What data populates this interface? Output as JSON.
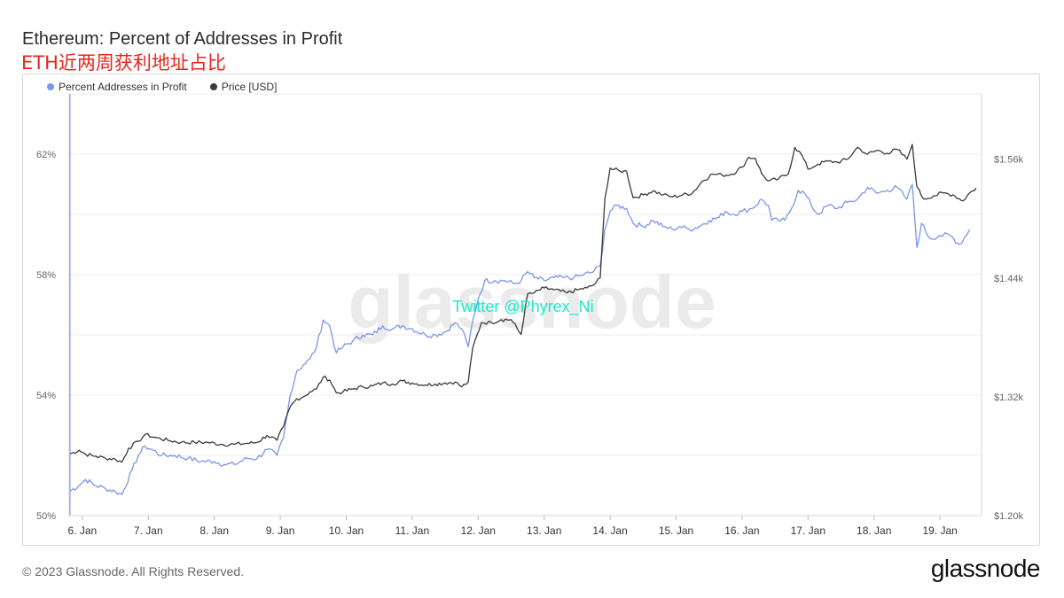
{
  "header": {
    "title": "Ethereum: Percent of Addresses in Profit",
    "subtitle": "ETH近两周获利地址占比"
  },
  "footer": {
    "copyright": "© 2023 Glassnode. All Rights Reserved.",
    "brand": "glassnode"
  },
  "watermark": {
    "logo_text": "glassnode",
    "twitter": "Twitter @Phyrex_Ni"
  },
  "colors": {
    "profit_line": "#7b96e8",
    "price_line": "#3a3a3a",
    "grid": "#ececec",
    "twitter_text": "#1de9c9"
  },
  "chart_data": {
    "type": "line",
    "x_ticks": [
      "6. Jan",
      "7. Jan",
      "8. Jan",
      "9. Jan",
      "10. Jan",
      "11. Jan",
      "12. Jan",
      "13. Jan",
      "14. Jan",
      "15. Jan",
      "16. Jan",
      "17. Jan",
      "18. Jan",
      "19. Jan"
    ],
    "x_range": [
      "5. Jan 19:00",
      "19. Jan 15:00"
    ],
    "y_left": {
      "ticks": [
        "50%",
        "54%",
        "58%",
        "62%"
      ],
      "tick_values": [
        50,
        54,
        58,
        62
      ],
      "ylim": [
        50,
        64
      ]
    },
    "y_right": {
      "ticks": [
        "$1.20k",
        "$1.32k",
        "$1.44k",
        "$1.56k"
      ],
      "tick_values": [
        1200,
        1320,
        1440,
        1560
      ],
      "ylim": [
        1200,
        1626
      ]
    },
    "legend_position": "top-left",
    "grid": true,
    "series": [
      {
        "name": "Percent Addresses in Profit",
        "axis": "left",
        "color": "#7b96e8",
        "points": [
          [
            5.8,
            50.8
          ],
          [
            5.95,
            51.0
          ],
          [
            6.05,
            51.2
          ],
          [
            6.2,
            51.0
          ],
          [
            6.35,
            50.9
          ],
          [
            6.5,
            50.8
          ],
          [
            6.6,
            50.7
          ],
          [
            6.75,
            51.5
          ],
          [
            6.85,
            52.0
          ],
          [
            6.95,
            52.3
          ],
          [
            7.05,
            52.2
          ],
          [
            7.2,
            52.0
          ],
          [
            7.4,
            52.0
          ],
          [
            7.6,
            51.9
          ],
          [
            7.8,
            51.8
          ],
          [
            8.0,
            51.8
          ],
          [
            8.15,
            51.7
          ],
          [
            8.3,
            51.7
          ],
          [
            8.5,
            51.9
          ],
          [
            8.65,
            51.9
          ],
          [
            8.8,
            52.2
          ],
          [
            8.95,
            52.0
          ],
          [
            9.05,
            52.6
          ],
          [
            9.15,
            54.0
          ],
          [
            9.25,
            54.8
          ],
          [
            9.35,
            55.0
          ],
          [
            9.45,
            55.2
          ],
          [
            9.55,
            55.6
          ],
          [
            9.65,
            56.5
          ],
          [
            9.75,
            56.3
          ],
          [
            9.85,
            55.4
          ],
          [
            9.95,
            55.6
          ],
          [
            10.1,
            55.8
          ],
          [
            10.25,
            56.0
          ],
          [
            10.4,
            56.0
          ],
          [
            10.55,
            56.3
          ],
          [
            10.7,
            56.2
          ],
          [
            10.85,
            56.3
          ],
          [
            11.0,
            56.2
          ],
          [
            11.2,
            56.0
          ],
          [
            11.35,
            56.0
          ],
          [
            11.5,
            56.1
          ],
          [
            11.65,
            56.4
          ],
          [
            11.75,
            56.2
          ],
          [
            11.85,
            55.6
          ],
          [
            11.92,
            56.5
          ],
          [
            12.0,
            57.2
          ],
          [
            12.1,
            57.8
          ],
          [
            12.25,
            57.8
          ],
          [
            12.4,
            57.8
          ],
          [
            12.55,
            57.7
          ],
          [
            12.65,
            57.8
          ],
          [
            12.75,
            58.1
          ],
          [
            12.85,
            57.9
          ],
          [
            13.0,
            57.8
          ],
          [
            13.15,
            57.9
          ],
          [
            13.3,
            57.9
          ],
          [
            13.45,
            57.9
          ],
          [
            13.6,
            58.0
          ],
          [
            13.75,
            58.1
          ],
          [
            13.85,
            58.3
          ],
          [
            13.92,
            59.5
          ],
          [
            14.0,
            60.1
          ],
          [
            14.1,
            60.3
          ],
          [
            14.25,
            60.2
          ],
          [
            14.35,
            59.7
          ],
          [
            14.5,
            59.6
          ],
          [
            14.65,
            59.8
          ],
          [
            14.8,
            59.6
          ],
          [
            14.95,
            59.5
          ],
          [
            15.05,
            59.6
          ],
          [
            15.2,
            59.5
          ],
          [
            15.35,
            59.6
          ],
          [
            15.5,
            59.8
          ],
          [
            15.65,
            59.9
          ],
          [
            15.75,
            60.1
          ],
          [
            15.85,
            60.0
          ],
          [
            16.0,
            60.1
          ],
          [
            16.15,
            60.2
          ],
          [
            16.3,
            60.5
          ],
          [
            16.4,
            60.3
          ],
          [
            16.45,
            59.8
          ],
          [
            16.55,
            59.8
          ],
          [
            16.65,
            59.8
          ],
          [
            16.75,
            60.2
          ],
          [
            16.85,
            60.8
          ],
          [
            16.95,
            60.7
          ],
          [
            17.05,
            60.3
          ],
          [
            17.15,
            60.0
          ],
          [
            17.3,
            60.3
          ],
          [
            17.45,
            60.2
          ],
          [
            17.6,
            60.4
          ],
          [
            17.75,
            60.5
          ],
          [
            17.9,
            60.9
          ],
          [
            18.05,
            60.7
          ],
          [
            18.2,
            60.8
          ],
          [
            18.35,
            60.9
          ],
          [
            18.5,
            60.5
          ],
          [
            18.58,
            61.0
          ],
          [
            18.65,
            58.9
          ],
          [
            18.72,
            59.7
          ],
          [
            18.85,
            59.2
          ],
          [
            19.0,
            59.3
          ],
          [
            19.15,
            59.3
          ],
          [
            19.3,
            59.0
          ],
          [
            19.45,
            59.5
          ]
        ]
      },
      {
        "name": "Price [USD]",
        "axis": "right",
        "color": "#3a3a3a",
        "points": [
          [
            5.8,
            1262
          ],
          [
            5.95,
            1266
          ],
          [
            6.05,
            1262
          ],
          [
            6.2,
            1260
          ],
          [
            6.35,
            1258
          ],
          [
            6.5,
            1257
          ],
          [
            6.6,
            1254
          ],
          [
            6.7,
            1268
          ],
          [
            6.85,
            1275
          ],
          [
            6.95,
            1282
          ],
          [
            7.1,
            1279
          ],
          [
            7.3,
            1276
          ],
          [
            7.5,
            1274
          ],
          [
            7.7,
            1274
          ],
          [
            7.9,
            1274
          ],
          [
            8.1,
            1272
          ],
          [
            8.3,
            1272
          ],
          [
            8.5,
            1273
          ],
          [
            8.65,
            1274
          ],
          [
            8.8,
            1281
          ],
          [
            8.95,
            1276
          ],
          [
            9.05,
            1290
          ],
          [
            9.15,
            1310
          ],
          [
            9.25,
            1318
          ],
          [
            9.35,
            1320
          ],
          [
            9.45,
            1325
          ],
          [
            9.55,
            1328
          ],
          [
            9.65,
            1340
          ],
          [
            9.75,
            1337
          ],
          [
            9.85,
            1324
          ],
          [
            9.95,
            1325
          ],
          [
            10.1,
            1328
          ],
          [
            10.25,
            1330
          ],
          [
            10.4,
            1331
          ],
          [
            10.55,
            1334
          ],
          [
            10.7,
            1333
          ],
          [
            10.85,
            1336
          ],
          [
            11.0,
            1334
          ],
          [
            11.2,
            1332
          ],
          [
            11.35,
            1333
          ],
          [
            11.5,
            1334
          ],
          [
            11.65,
            1335
          ],
          [
            11.75,
            1330
          ],
          [
            11.85,
            1335
          ],
          [
            11.92,
            1370
          ],
          [
            12.05,
            1395
          ],
          [
            12.2,
            1395
          ],
          [
            12.35,
            1398
          ],
          [
            12.5,
            1398
          ],
          [
            12.65,
            1383
          ],
          [
            12.75,
            1424
          ],
          [
            12.85,
            1425
          ],
          [
            13.0,
            1430
          ],
          [
            13.15,
            1428
          ],
          [
            13.35,
            1425
          ],
          [
            13.5,
            1428
          ],
          [
            13.65,
            1430
          ],
          [
            13.75,
            1433
          ],
          [
            13.85,
            1440
          ],
          [
            13.92,
            1520
          ],
          [
            14.0,
            1551
          ],
          [
            14.15,
            1548
          ],
          [
            14.25,
            1548
          ],
          [
            14.35,
            1521
          ],
          [
            14.5,
            1524
          ],
          [
            14.65,
            1528
          ],
          [
            14.8,
            1524
          ],
          [
            14.95,
            1522
          ],
          [
            15.1,
            1524
          ],
          [
            15.25,
            1526
          ],
          [
            15.4,
            1538
          ],
          [
            15.55,
            1545
          ],
          [
            15.7,
            1544
          ],
          [
            15.85,
            1545
          ],
          [
            16.0,
            1552
          ],
          [
            16.1,
            1562
          ],
          [
            16.2,
            1561
          ],
          [
            16.3,
            1545
          ],
          [
            16.4,
            1538
          ],
          [
            16.55,
            1540
          ],
          [
            16.7,
            1545
          ],
          [
            16.8,
            1572
          ],
          [
            16.9,
            1565
          ],
          [
            17.0,
            1550
          ],
          [
            17.15,
            1555
          ],
          [
            17.3,
            1558
          ],
          [
            17.45,
            1557
          ],
          [
            17.6,
            1560
          ],
          [
            17.75,
            1572
          ],
          [
            17.9,
            1565
          ],
          [
            18.05,
            1569
          ],
          [
            18.2,
            1566
          ],
          [
            18.35,
            1570
          ],
          [
            18.5,
            1560
          ],
          [
            18.58,
            1575
          ],
          [
            18.65,
            1532
          ],
          [
            18.75,
            1520
          ],
          [
            18.9,
            1523
          ],
          [
            19.05,
            1526
          ],
          [
            19.2,
            1524
          ],
          [
            19.35,
            1518
          ],
          [
            19.45,
            1526
          ],
          [
            19.55,
            1531
          ]
        ]
      }
    ]
  }
}
